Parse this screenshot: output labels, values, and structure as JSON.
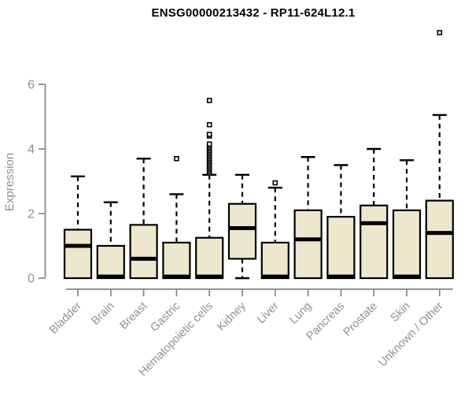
{
  "chart_data": {
    "type": "boxplot",
    "title": "ENSG00000213432 - RP11-624L12.1",
    "ylabel": "Expression",
    "xlabel": "",
    "ylim": [
      0,
      6
    ],
    "yticks": [
      0,
      2,
      4,
      6
    ],
    "grid": false,
    "legend": null,
    "categories": [
      "Bladder",
      "Brain",
      "Breast",
      "Gastric",
      "Hematopoietic cells",
      "Kidney",
      "Liver",
      "Lung",
      "Pancreas",
      "Prostate",
      "Skin",
      "Unknown / Other"
    ],
    "boxes": [
      {
        "category": "Bladder",
        "whisker_low": 0,
        "q1": 0,
        "median": 1.0,
        "q3": 1.5,
        "whisker_high": 3.15,
        "outliers": []
      },
      {
        "category": "Brain",
        "whisker_low": 0,
        "q1": 0,
        "median": 0.05,
        "q3": 1.0,
        "whisker_high": 2.35,
        "outliers": []
      },
      {
        "category": "Breast",
        "whisker_low": 0,
        "q1": 0,
        "median": 0.6,
        "q3": 1.65,
        "whisker_high": 3.7,
        "outliers": []
      },
      {
        "category": "Gastric",
        "whisker_low": 0,
        "q1": 0,
        "median": 0.05,
        "q3": 1.1,
        "whisker_high": 2.6,
        "outliers": [
          3.7
        ]
      },
      {
        "category": "Hematopoietic cells",
        "whisker_low": 0,
        "q1": 0,
        "median": 0.05,
        "q3": 1.25,
        "whisker_high": 3.2,
        "outliers": [
          3.25,
          3.3,
          3.35,
          3.4,
          3.45,
          3.5,
          3.55,
          3.6,
          3.65,
          3.7,
          3.75,
          3.8,
          3.85,
          3.9,
          3.95,
          4.0,
          4.05,
          4.1,
          4.15,
          4.4,
          4.45,
          4.75,
          5.5
        ]
      },
      {
        "category": "Kidney",
        "whisker_low": 0,
        "q1": 0.6,
        "median": 1.55,
        "q3": 2.3,
        "whisker_high": 3.2,
        "outliers": []
      },
      {
        "category": "Liver",
        "whisker_low": 0,
        "q1": 0,
        "median": 0.05,
        "q3": 1.1,
        "whisker_high": 2.8,
        "outliers": [
          2.95
        ]
      },
      {
        "category": "Lung",
        "whisker_low": 0,
        "q1": 0,
        "median": 1.2,
        "q3": 2.1,
        "whisker_high": 3.75,
        "outliers": []
      },
      {
        "category": "Pancreas",
        "whisker_low": 0,
        "q1": 0,
        "median": 0.05,
        "q3": 1.9,
        "whisker_high": 3.5,
        "outliers": []
      },
      {
        "category": "Prostate",
        "whisker_low": 0,
        "q1": 0,
        "median": 1.7,
        "q3": 2.25,
        "whisker_high": 4.0,
        "outliers": []
      },
      {
        "category": "Skin",
        "whisker_low": 0,
        "q1": 0,
        "median": 0.05,
        "q3": 2.1,
        "whisker_high": 3.65,
        "outliers": []
      },
      {
        "category": "Unknown / Other",
        "whisker_low": 0,
        "q1": 0,
        "median": 1.4,
        "q3": 2.4,
        "whisker_high": 5.05,
        "outliers": [
          7.6
        ]
      }
    ],
    "colors": {
      "box_fill": "#ECE7CD",
      "box_border": "#000000",
      "median": "#000000",
      "whisker": "#000000",
      "outlier_fill": "#ffffff",
      "axis": "#858585",
      "tick_text": "#909090",
      "title_text": "#000000"
    }
  }
}
